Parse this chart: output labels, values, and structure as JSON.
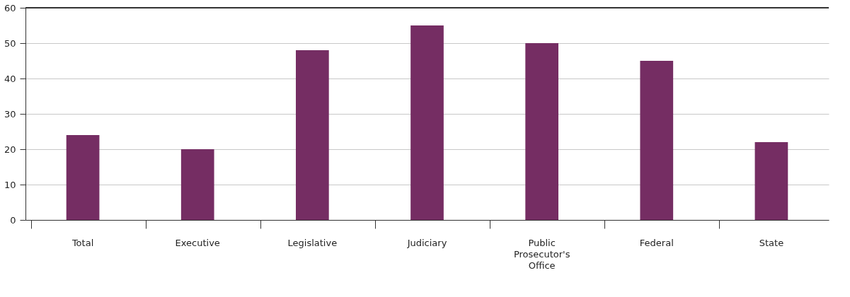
{
  "chart_data": {
    "type": "bar",
    "categories": [
      "Total",
      "Executive",
      "Legislative",
      "Judiciary",
      "Public Prosecutor's Office",
      "Federal",
      "State"
    ],
    "values": [
      24,
      20,
      48,
      55,
      50,
      45,
      22
    ],
    "color": "#752d63",
    "ylim": [
      0,
      60
    ],
    "yticks": [
      0,
      10,
      20,
      30,
      40,
      50,
      60
    ],
    "grid": "y"
  }
}
